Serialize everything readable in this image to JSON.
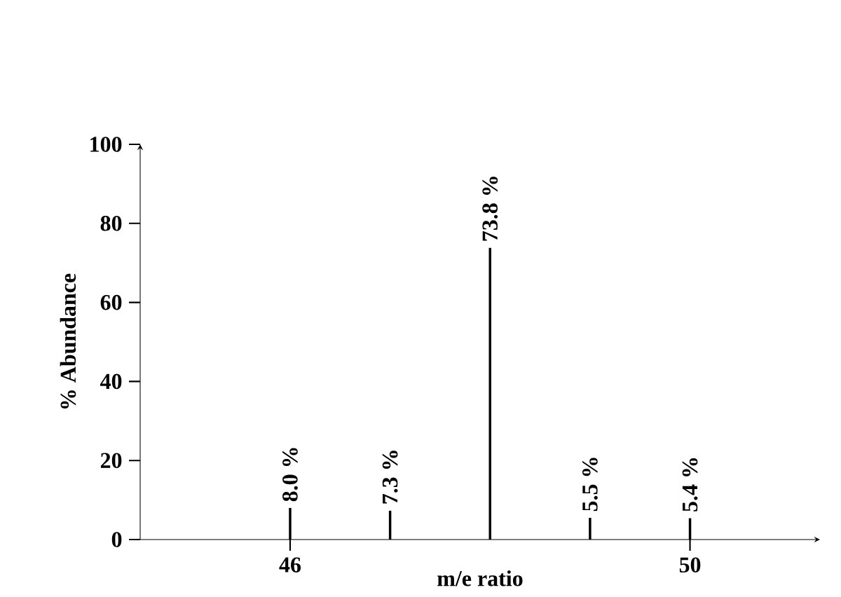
{
  "chart_data": {
    "type": "bar",
    "xlabel": "m/e ratio",
    "ylabel": "% Abundance",
    "x": [
      46,
      47,
      48,
      49,
      50
    ],
    "values": [
      8.0,
      7.3,
      73.8,
      5.5,
      5.4
    ],
    "value_labels": [
      "8.0 %",
      "7.3 %",
      "73.8 %",
      "5.5 %",
      "5.4 %"
    ],
    "color": "#000000",
    "xlim": [
      44.5,
      51.3
    ],
    "xticks": [
      46,
      50
    ],
    "ylim": [
      0,
      100
    ],
    "yticks": [
      0,
      20,
      40,
      60,
      80,
      100
    ]
  }
}
